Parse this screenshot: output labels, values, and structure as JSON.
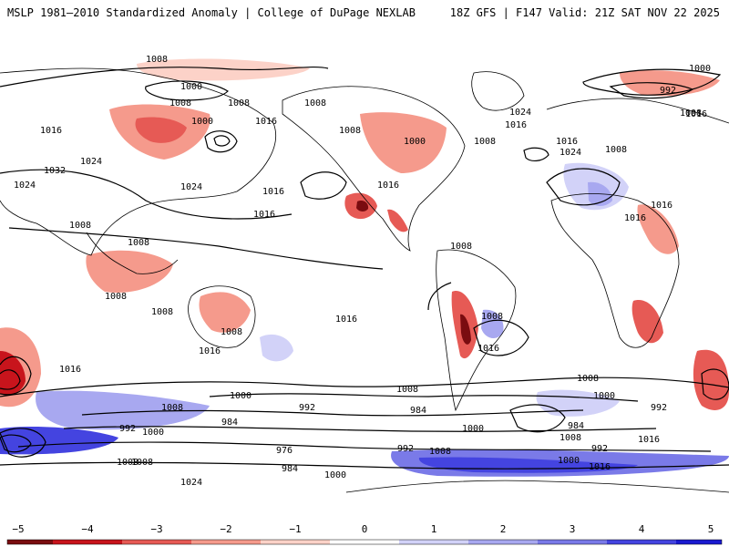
{
  "header": {
    "left_title": "MSLP 1981–2010 Standardized Anomaly | College of DuPage NEXLAB",
    "right_title": "18Z GFS | F147 Valid: 21Z SAT NOV 22 2025"
  },
  "colors": {
    "land_outline": "#000000",
    "contour": "#000000",
    "neg5": "#7a0c10",
    "neg4": "#c8141c",
    "neg3": "#e65a55",
    "neg2": "#f59a8c",
    "neg1": "#fcd2c8",
    "pos1": "#d2d2f8",
    "pos2": "#a8a8f0",
    "pos3": "#7a7ae8",
    "pos4": "#4444e0",
    "pos5": "#1a1ad0"
  },
  "colorbar": {
    "ticks": [
      "−5",
      "−4",
      "−3",
      "−2",
      "−1",
      "0",
      "1",
      "2",
      "3",
      "4",
      "5"
    ],
    "tick_values": [
      -5,
      -4,
      -3,
      -2,
      -1,
      0,
      1,
      2,
      3,
      4,
      5
    ]
  },
  "contour_labels": [
    "1008",
    "1000",
    "1008",
    "1008",
    "1000",
    "1016",
    "1008",
    "1008",
    "1016",
    "1024",
    "1032",
    "1024",
    "1024",
    "1016",
    "1008",
    "1008",
    "1000",
    "992",
    "1024",
    "1016",
    "1016",
    "1008",
    "1016",
    "1024",
    "1016",
    "1016",
    "1008",
    "1016",
    "1008",
    "1008",
    "1016",
    "1008",
    "1008",
    "1016",
    "1008",
    "1016",
    "1016",
    "1016",
    "1008",
    "1000",
    "992",
    "984",
    "1000",
    "1008",
    "992",
    "1008",
    "1000",
    "992",
    "984",
    "984",
    "976",
    "984",
    "1000",
    "1008",
    "992",
    "1008",
    "1000",
    "1016",
    "1024",
    "1000",
    "1000",
    "992",
    "1016",
    "1008",
    "1008",
    "1008"
  ]
}
